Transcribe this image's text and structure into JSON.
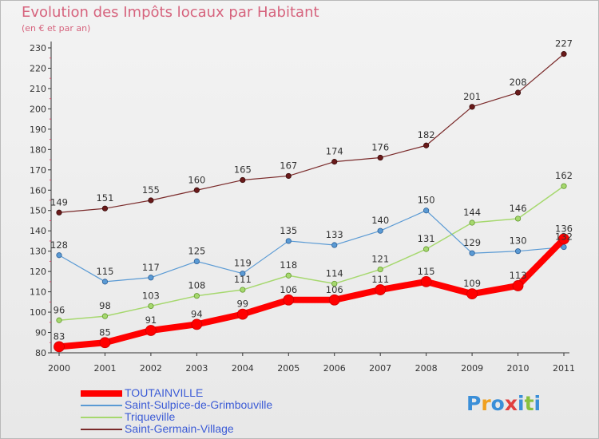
{
  "title": "Evolution des Impôts locaux par Habitant",
  "subtitle": "(en € et par an)",
  "logo": {
    "text": "Proxiti",
    "colors": [
      "#3b8fd8",
      "#f0a020",
      "#3b8fd8",
      "#e04040",
      "#3b8fd8",
      "#88c040",
      "#3b8fd8"
    ]
  },
  "chart_data": {
    "type": "line",
    "x": [
      "2000",
      "2001",
      "2002",
      "2003",
      "2004",
      "2005",
      "2006",
      "2007",
      "2008",
      "2009",
      "2010",
      "2011"
    ],
    "ylim": [
      80,
      230
    ],
    "yticks": [
      80,
      90,
      100,
      110,
      120,
      130,
      140,
      150,
      160,
      170,
      180,
      190,
      200,
      210,
      220,
      230
    ],
    "grid": false,
    "legend": "bottom-left",
    "series": [
      {
        "name": "TOUTAINVILLE",
        "color": "#ff0000",
        "values": [
          83,
          85,
          91,
          94,
          99,
          106,
          106,
          111,
          115,
          109,
          113,
          136
        ]
      },
      {
        "name": "Saint-Sulpice-de-Grimbouville",
        "color": "#5a9ad4",
        "values": [
          128,
          115,
          117,
          125,
          119,
          135,
          133,
          140,
          150,
          129,
          130,
          132
        ]
      },
      {
        "name": "Triqueville",
        "color": "#a6d86e",
        "values": [
          96,
          98,
          103,
          108,
          111,
          118,
          114,
          121,
          131,
          144,
          146,
          162
        ]
      },
      {
        "name": "Saint-Germain-Village",
        "color": "#7a2a2a",
        "values": [
          149,
          151,
          155,
          160,
          165,
          167,
          174,
          176,
          182,
          201,
          208,
          227
        ]
      }
    ]
  }
}
